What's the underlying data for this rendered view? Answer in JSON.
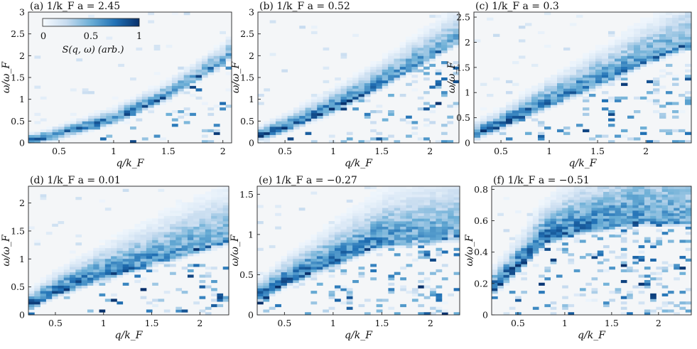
{
  "figure": {
    "colorbar": {
      "min_label": "0",
      "mid_label": "0.5",
      "max_label": "1",
      "label": "S(q, ω) (arb.)",
      "colormap": [
        "#f7fbff",
        "#c6dbef",
        "#6baed6",
        "#2171b5",
        "#08306b"
      ]
    },
    "background_color": "#f4f6f8"
  },
  "chart_data": [
    {
      "type": "heatmap",
      "title": "(a) 1/k_F a = 2.45",
      "xlabel": "q/k_F",
      "ylabel": "ω/ω_F",
      "xlim": [
        0.22,
        2.08
      ],
      "ylim": [
        0,
        3
      ],
      "xticks": [
        0.5,
        1,
        1.5,
        2
      ],
      "xtick_labels": [
        "0.5",
        "1",
        "1.5",
        "2"
      ],
      "yticks": [
        0,
        0.5,
        1,
        1.5,
        2,
        2.5,
        3
      ],
      "ytick_labels": [
        "0",
        "0.5",
        "1",
        "1.5",
        "2",
        "2.5",
        "3"
      ],
      "dispersion": {
        "q": [
          0.22,
          0.5,
          1.0,
          1.5,
          2.0,
          2.08
        ],
        "omega": [
          0.05,
          0.2,
          0.55,
          1.1,
          1.9,
          2.1
        ]
      },
      "band_fraction": 0.05,
      "noise_level": 0.4
    },
    {
      "type": "heatmap",
      "title": "(b) 1/k_F a = 0.52",
      "xlabel": "q/k_F",
      "ylabel": "ω/ω_F",
      "xlim": [
        0.22,
        2.3
      ],
      "ylim": [
        0,
        3
      ],
      "xticks": [
        0.5,
        1,
        1.5,
        2
      ],
      "xtick_labels": [
        "0.5",
        "1",
        "1.5",
        "2"
      ],
      "yticks": [
        0,
        0.5,
        1,
        1.5,
        2,
        2.5,
        3
      ],
      "ytick_labels": [
        "0",
        "0.5",
        "1",
        "1.5",
        "2",
        "2.5",
        "3"
      ],
      "dispersion": {
        "q": [
          0.22,
          0.5,
          1.0,
          1.5,
          2.0,
          2.3
        ],
        "omega": [
          0.15,
          0.35,
          0.8,
          1.35,
          2.0,
          2.4
        ]
      },
      "band_fraction": 0.1,
      "noise_level": 0.55
    },
    {
      "type": "heatmap",
      "title": "(c) 1/k_F a = 0.3",
      "xlabel": "q/k_F",
      "ylabel": "ω/ω_F",
      "xlim": [
        0.22,
        2.47
      ],
      "ylim": [
        0,
        2.6
      ],
      "xticks": [
        0.5,
        1,
        1.5,
        2
      ],
      "xtick_labels": [
        "0.5",
        "1",
        "1.5",
        "2"
      ],
      "yticks": [
        0,
        0.5,
        1,
        1.5,
        2,
        2.5
      ],
      "ytick_labels": [
        "0",
        "0.5",
        "1",
        "1.5",
        "2",
        "2.5"
      ],
      "dispersion": {
        "q": [
          0.22,
          0.5,
          1.0,
          1.5,
          2.0,
          2.47
        ],
        "omega": [
          0.15,
          0.35,
          0.8,
          1.2,
          1.65,
          2.0
        ]
      },
      "band_fraction": 0.14,
      "noise_level": 0.6
    },
    {
      "type": "heatmap",
      "title": "(d) 1/k_F a = 0.01",
      "xlabel": "q/k_F",
      "ylabel": "ω/ω_F",
      "xlim": [
        0.22,
        2.3
      ],
      "ylim": [
        0,
        2.3
      ],
      "xticks": [
        0.5,
        1,
        1.5,
        2
      ],
      "xtick_labels": [
        "0.5",
        "1",
        "1.5",
        "2"
      ],
      "yticks": [
        0,
        0.5,
        1,
        1.5,
        2
      ],
      "ytick_labels": [
        "0",
        "0.5",
        "1",
        "1.5",
        "2"
      ],
      "dispersion": {
        "q": [
          0.22,
          0.5,
          1.0,
          1.5,
          2.0,
          2.3
        ],
        "omega": [
          0.15,
          0.4,
          0.7,
          0.95,
          1.2,
          1.35
        ]
      },
      "band_fraction": 0.18,
      "noise_level": 0.6
    },
    {
      "type": "heatmap",
      "title": "(e) 1/k_F a = −0.27",
      "xlabel": "q/k_F",
      "ylabel": "ω/ω_F",
      "xlim": [
        0.22,
        2.3
      ],
      "ylim": [
        0,
        1.6
      ],
      "xticks": [
        0.5,
        1,
        1.5,
        2
      ],
      "xtick_labels": [
        "0.5",
        "1",
        "1.5",
        "2"
      ],
      "yticks": [
        0,
        0.5,
        1,
        1.5
      ],
      "ytick_labels": [
        "0",
        "0.5",
        "1",
        "1.5"
      ],
      "dispersion": {
        "q": [
          0.22,
          0.5,
          1.0,
          1.5,
          2.0,
          2.3
        ],
        "omega": [
          0.2,
          0.4,
          0.65,
          0.9,
          0.95,
          1.0
        ]
      },
      "band_fraction": 0.22,
      "noise_level": 0.65
    },
    {
      "type": "heatmap",
      "title": "(f) 1/k_F a = −0.51",
      "xlabel": "q/k_F",
      "ylabel": "ω/ω_F",
      "xlim": [
        0.22,
        2.35
      ],
      "ylim": [
        0,
        0.82
      ],
      "xticks": [
        0.5,
        1,
        1.5,
        2
      ],
      "xtick_labels": [
        "0.5",
        "1",
        "1.5",
        "2"
      ],
      "yticks": [
        0,
        0.2,
        0.4,
        0.6,
        0.8
      ],
      "ytick_labels": [
        "0",
        "0.2",
        "0.4",
        "0.6",
        "0.8"
      ],
      "dispersion": {
        "q": [
          0.22,
          0.5,
          0.8,
          1.2,
          1.8,
          2.35
        ],
        "omega": [
          0.15,
          0.3,
          0.48,
          0.55,
          0.6,
          0.6
        ]
      },
      "band_fraction": 0.28,
      "noise_level": 0.75
    }
  ]
}
